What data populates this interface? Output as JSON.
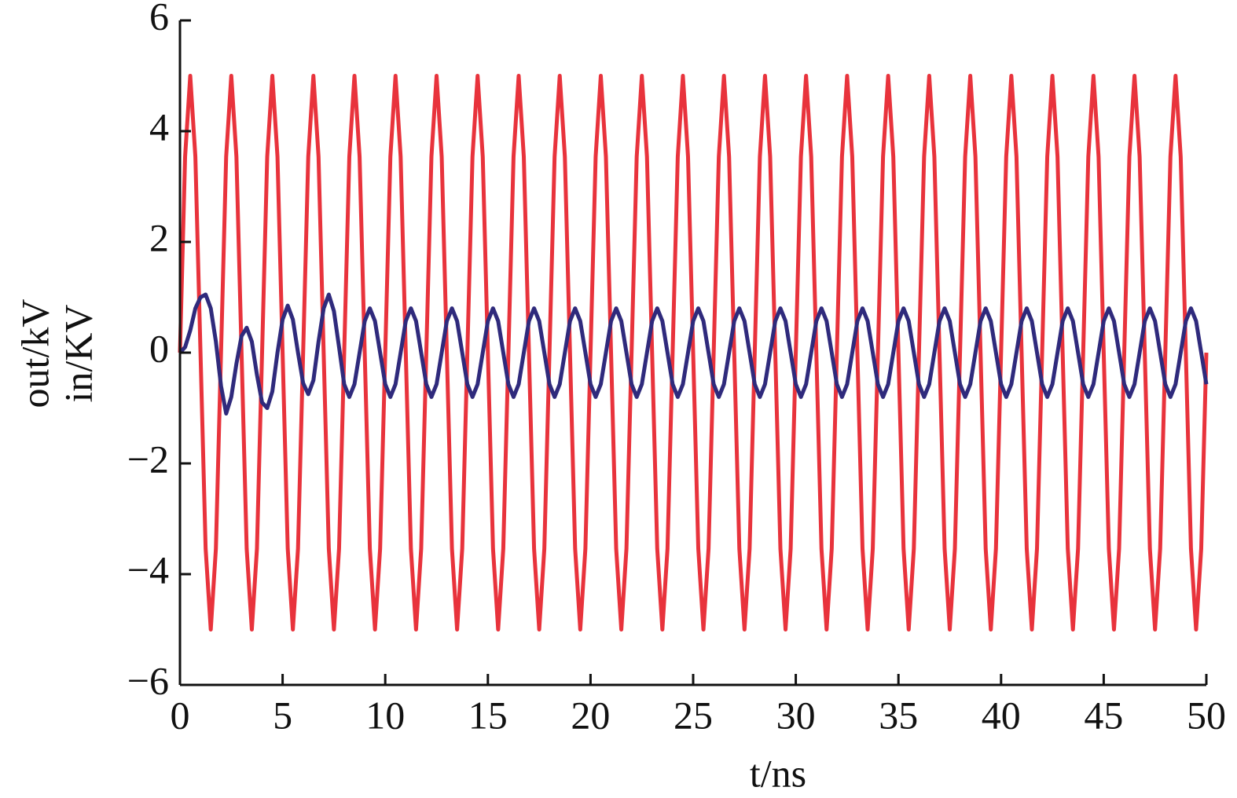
{
  "chart_data": {
    "type": "line",
    "y_label": [
      "out/kV",
      "in/KV"
    ],
    "x_label": "t/ns",
    "xlim": [
      0,
      50
    ],
    "xticks": [
      0,
      5,
      10,
      15,
      20,
      25,
      30,
      35,
      40,
      45,
      50
    ],
    "ylim": [
      -6,
      6
    ],
    "yticks": [
      {
        "value": -6,
        "label": "−6"
      },
      {
        "value": -4,
        "label": "−4"
      },
      {
        "value": -2,
        "label": "−2"
      },
      0,
      2,
      4,
      6
    ],
    "x": [
      0,
      0.25,
      0.5,
      0.75,
      1,
      1.25,
      1.5,
      1.75,
      2,
      2.25,
      2.5,
      2.75,
      3,
      3.25,
      3.5,
      3.75,
      4,
      4.25,
      4.5,
      4.75,
      5,
      5.25,
      5.5,
      5.75,
      6,
      6.25,
      6.5,
      6.75,
      7,
      7.25,
      7.5,
      7.75,
      8,
      8.25,
      8.5,
      8.75,
      9,
      9.25,
      9.5,
      9.75,
      10,
      10.25,
      10.5,
      10.75,
      11,
      11.25,
      11.5,
      11.75,
      12,
      12.25,
      12.5,
      12.75,
      13,
      13.25,
      13.5,
      13.75,
      14,
      14.25,
      14.5,
      14.75,
      15,
      15.25,
      15.5,
      15.75,
      16,
      16.25,
      16.5,
      16.75,
      17,
      17.25,
      17.5,
      17.75,
      18,
      18.25,
      18.5,
      18.75,
      19,
      19.25,
      19.5,
      19.75,
      20,
      20.25,
      20.5,
      20.75,
      21,
      21.25,
      21.5,
      21.75,
      22,
      22.25,
      22.5,
      22.75,
      23,
      23.25,
      23.5,
      23.75,
      24,
      24.25,
      24.5,
      24.75,
      25,
      25.25,
      25.5,
      25.75,
      26,
      26.25,
      26.5,
      26.75,
      27,
      27.25,
      27.5,
      27.75,
      28,
      28.25,
      28.5,
      28.75,
      29,
      29.25,
      29.5,
      29.75,
      30,
      30.25,
      30.5,
      30.75,
      31,
      31.25,
      31.5,
      31.75,
      32,
      32.25,
      32.5,
      32.75,
      33,
      33.25,
      33.5,
      33.75,
      34,
      34.25,
      34.5,
      34.75,
      35,
      35.25,
      35.5,
      35.75,
      36,
      36.25,
      36.5,
      36.75,
      37,
      37.25,
      37.5,
      37.75,
      38,
      38.25,
      38.5,
      38.75,
      39,
      39.25,
      39.5,
      39.75,
      40,
      40.25,
      40.5,
      40.75,
      41,
      41.25,
      41.5,
      41.75,
      42,
      42.25,
      42.5,
      42.75,
      43,
      43.25,
      43.5,
      43.75,
      44,
      44.25,
      44.5,
      44.75,
      45,
      45.25,
      45.5,
      45.75,
      46,
      46.25,
      46.5,
      46.75,
      47,
      47.25,
      47.5,
      47.75,
      48,
      48.25,
      48.5,
      48.75,
      49,
      49.25,
      49.5,
      49.75,
      50
    ],
    "series": [
      {
        "color": "#e8333c",
        "values": [
          0,
          3.54,
          5,
          3.54,
          0,
          -3.54,
          -5,
          -3.54,
          0,
          3.54,
          5,
          3.54,
          0,
          -3.54,
          -5,
          -3.54,
          0,
          3.54,
          5,
          3.54,
          0,
          -3.54,
          -5,
          -3.54,
          0,
          3.54,
          5,
          3.54,
          0,
          -3.54,
          -5,
          -3.54,
          0,
          3.54,
          5,
          3.54,
          0,
          -3.54,
          -5,
          -3.54,
          0,
          3.54,
          5,
          3.54,
          0,
          -3.54,
          -5,
          -3.54,
          0,
          3.54,
          5,
          3.54,
          0,
          -3.54,
          -5,
          -3.54,
          0,
          3.54,
          5,
          3.54,
          0,
          -3.54,
          -5,
          -3.54,
          0,
          3.54,
          5,
          3.54,
          0,
          -3.54,
          -5,
          -3.54,
          0,
          3.54,
          5,
          3.54,
          0,
          -3.54,
          -5,
          -3.54,
          0,
          3.54,
          5,
          3.54,
          0,
          -3.54,
          -5,
          -3.54,
          0,
          3.54,
          5,
          3.54,
          0,
          -3.54,
          -5,
          -3.54,
          0,
          3.54,
          5,
          3.54,
          0,
          -3.54,
          -5,
          -3.54,
          0,
          3.54,
          5,
          3.54,
          0,
          -3.54,
          -5,
          -3.54,
          0,
          3.54,
          5,
          3.54,
          0,
          -3.54,
          -5,
          -3.54,
          0,
          3.54,
          5,
          3.54,
          0,
          -3.54,
          -5,
          -3.54,
          0,
          3.54,
          5,
          3.54,
          0,
          -3.54,
          -5,
          -3.54,
          0,
          3.54,
          5,
          3.54,
          0,
          -3.54,
          -5,
          -3.54,
          0,
          3.54,
          5,
          3.54,
          0,
          -3.54,
          -5,
          -3.54,
          0,
          3.54,
          5,
          3.54,
          0,
          -3.54,
          -5,
          -3.54,
          0,
          3.54,
          5,
          3.54,
          0,
          -3.54,
          -5,
          -3.54,
          0,
          3.54,
          5,
          3.54,
          0,
          -3.54,
          -5,
          -3.54,
          0,
          3.54,
          5,
          3.54,
          0,
          -3.54,
          -5,
          -3.54,
          0,
          3.54,
          5,
          3.54,
          0,
          -3.54,
          -5,
          -3.54,
          0,
          3.54,
          5,
          3.54,
          0,
          -3.54,
          -5,
          -3.54,
          0
        ]
      },
      {
        "color": "#2f2a7c",
        "values": [
          0,
          0.1,
          0.4,
          0.8,
          1.0,
          1.05,
          0.8,
          0.2,
          -0.6,
          -1.1,
          -0.8,
          -0.2,
          0.3,
          0.45,
          0.2,
          -0.4,
          -0.9,
          -1.0,
          -0.7,
          0,
          0.6,
          0.85,
          0.6,
          0,
          -0.55,
          -0.75,
          -0.5,
          0.2,
          0.8,
          1.05,
          0.75,
          0.1,
          -0.57,
          -0.8,
          -0.57,
          0,
          0.57,
          0.8,
          0.57,
          0,
          -0.57,
          -0.8,
          -0.57,
          0,
          0.57,
          0.8,
          0.57,
          0,
          -0.57,
          -0.8,
          -0.57,
          0,
          0.57,
          0.8,
          0.57,
          0,
          -0.57,
          -0.8,
          -0.57,
          0,
          0.57,
          0.8,
          0.57,
          0,
          -0.57,
          -0.8,
          -0.57,
          0,
          0.57,
          0.8,
          0.57,
          0,
          -0.57,
          -0.8,
          -0.57,
          0,
          0.57,
          0.8,
          0.57,
          0,
          -0.57,
          -0.8,
          -0.57,
          0,
          0.57,
          0.8,
          0.57,
          0,
          -0.57,
          -0.8,
          -0.57,
          0,
          0.57,
          0.8,
          0.57,
          0,
          -0.57,
          -0.8,
          -0.57,
          0,
          0.57,
          0.8,
          0.57,
          0,
          -0.57,
          -0.8,
          -0.57,
          0,
          0.57,
          0.8,
          0.57,
          0,
          -0.57,
          -0.8,
          -0.57,
          0,
          0.57,
          0.8,
          0.57,
          0,
          -0.57,
          -0.8,
          -0.57,
          0,
          0.57,
          0.8,
          0.57,
          0,
          -0.57,
          -0.8,
          -0.57,
          0,
          0.57,
          0.8,
          0.57,
          0,
          -0.57,
          -0.8,
          -0.57,
          0,
          0.57,
          0.8,
          0.57,
          0,
          -0.57,
          -0.8,
          -0.57,
          0,
          0.57,
          0.8,
          0.57,
          0,
          -0.57,
          -0.8,
          -0.57,
          0,
          0.57,
          0.8,
          0.57,
          0,
          -0.57,
          -0.8,
          -0.57,
          0,
          0.57,
          0.8,
          0.57,
          0,
          -0.57,
          -0.8,
          -0.57,
          0,
          0.57,
          0.8,
          0.57,
          0,
          -0.57,
          -0.8,
          -0.57,
          0,
          0.57,
          0.8,
          0.57,
          0,
          -0.57,
          -0.8,
          -0.57,
          0,
          0.57,
          0.8,
          0.57,
          0,
          -0.57,
          -0.8,
          -0.57,
          0,
          0.57,
          0.8,
          0.57,
          0,
          -0.57
        ]
      }
    ]
  }
}
